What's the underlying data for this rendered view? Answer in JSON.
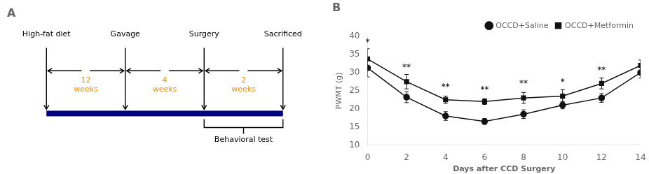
{
  "chart_data": [
    {
      "type": "timeline",
      "title": "A",
      "categories": [
        "High-fat diet",
        "Gavage",
        "Surgery",
        "Sacrificed"
      ],
      "color": "#000080",
      "annotations": [
        {
          "text": "12\nweeks",
          "color": "#FF8C00",
          "from": "High-fat diet",
          "to": "Gavage",
          "side": "above"
        },
        {
          "text": "4\nweeks",
          "color": "#FF8C00",
          "from": "Gavage",
          "to": "Surgery",
          "side": "above"
        },
        {
          "text": "2\nweeks",
          "color": "#FF8C00",
          "from": "Surgery",
          "to": "Sacrificed",
          "side": "above"
        },
        {
          "text": "Behavioral test",
          "from": "Surgery",
          "to": "Sacrificed",
          "side": "below"
        }
      ]
    },
    {
      "type": "line",
      "title": "B",
      "x_label": "Days after CCD Surgery",
      "y_label": "PWMT (g)",
      "xlim": [
        0,
        14
      ],
      "xticks": [
        0,
        2,
        4,
        6,
        8,
        10,
        12,
        14
      ],
      "ylim": [
        10,
        40
      ],
      "yticks": [
        10,
        15,
        20,
        25,
        30,
        35,
        40
      ],
      "grid": false,
      "legend": "upper right",
      "series": [
        {
          "name": "OCCD+Saline",
          "color": "#111111",
          "marker": "circle",
          "x": [
            0,
            2,
            4,
            6,
            8,
            10,
            12,
            14
          ],
          "values": [
            31.3,
            23.2,
            18.0,
            16.5,
            18.5,
            21.0,
            23.0,
            30.0
          ],
          "errors": [
            2.5,
            1.5,
            1.2,
            0.8,
            1.2,
            1.0,
            1.2,
            1.5
          ]
        },
        {
          "name": "OCCD+Metformin",
          "color": "#111111",
          "marker": "square",
          "x": [
            0,
            2,
            4,
            6,
            8,
            10,
            12,
            14
          ],
          "values": [
            33.8,
            27.5,
            22.5,
            22.0,
            23.0,
            23.5,
            27.0,
            32.0
          ],
          "errors": [
            2.8,
            2.0,
            1.0,
            0.8,
            1.5,
            1.8,
            1.5,
            1.5
          ]
        }
      ],
      "annotations": [
        {
          "x": 0,
          "y": 37.2,
          "text": "*"
        },
        {
          "x": 2,
          "y": 30.2,
          "text": "**"
        },
        {
          "x": 4,
          "y": 24.8,
          "text": "**"
        },
        {
          "x": 6,
          "y": 24.0,
          "text": "**"
        },
        {
          "x": 8,
          "y": 25.7,
          "text": "**"
        },
        {
          "x": 10,
          "y": 26.2,
          "text": "*"
        },
        {
          "x": 12,
          "y": 29.5,
          "text": "**"
        }
      ]
    }
  ]
}
